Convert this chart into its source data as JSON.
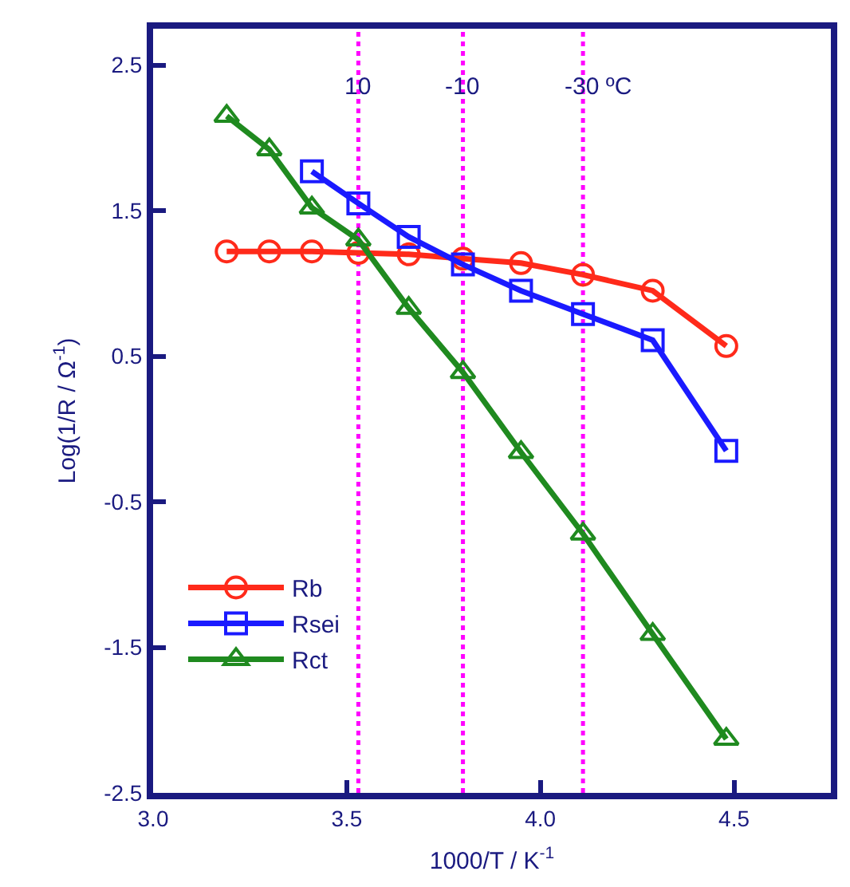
{
  "chart_data": {
    "type": "line",
    "xlabel": "1000/T / K$^{-1}$",
    "ylabel": "Log(1/R / Ω$^{-1}$)",
    "x": [
      3.19,
      3.3,
      3.41,
      3.53,
      3.66,
      3.8,
      3.95,
      4.11,
      4.29,
      4.48
    ],
    "series": [
      {
        "name": "Rb",
        "color": "#ff2a1a",
        "marker": "circle",
        "values": [
          1.22,
          1.22,
          1.22,
          1.21,
          1.2,
          1.17,
          1.14,
          1.06,
          0.95,
          0.57
        ]
      },
      {
        "name": "Rsei",
        "color": "#1a1aff",
        "marker": "square",
        "values": [
          null,
          null,
          1.77,
          1.55,
          1.32,
          1.13,
          0.95,
          0.79,
          0.61,
          -0.15
        ]
      },
      {
        "name": "Rct",
        "color": "#1f8a1f",
        "marker": "triangle",
        "values": [
          2.15,
          1.92,
          1.52,
          1.3,
          0.83,
          0.39,
          -0.16,
          -0.72,
          -1.41,
          -2.13
        ]
      }
    ],
    "xlim": [
      3.0,
      4.75
    ],
    "xticks": [
      {
        "value": 3.0,
        "label": "3.0"
      },
      3.5,
      {
        "value": 4.0,
        "label": "4.0"
      },
      4.5
    ],
    "ylim": [
      -2.5,
      2.75
    ],
    "yticks": [
      2.5,
      1.5,
      0.5,
      -0.5,
      -1.5,
      -2.5
    ],
    "ref_lines": [
      {
        "axis": "x",
        "value": 3.53,
        "color": "#ff00ff",
        "line_style": "dotted"
      },
      {
        "axis": "x",
        "value": 3.8,
        "color": "#ff00ff",
        "line_style": "dotted"
      },
      {
        "axis": "x",
        "value": 4.11,
        "color": "#ff00ff",
        "line_style": "dotted"
      }
    ],
    "annotations": [
      {
        "text": "10",
        "x": 3.53,
        "y": 2.35
      },
      {
        "text": "-10",
        "x": 3.8,
        "y": 2.35
      },
      {
        "text": "-30 ºC",
        "x": 4.11,
        "y": 2.35
      }
    ],
    "grid": false,
    "legend": "bottom left",
    "line_style": "solid"
  }
}
